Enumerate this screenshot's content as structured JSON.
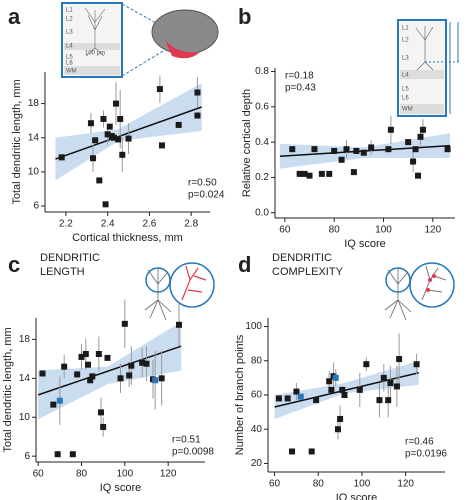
{
  "chart_data": [
    {
      "type": "scatter",
      "label": "a",
      "xlabel": "Cortical thickness, mm",
      "ylabel": "Total dendritic length, mm",
      "stats": [
        "r=0.50",
        "p=0.024"
      ],
      "heading": [],
      "inset_labels": [
        "L1",
        "L2",
        "L3",
        "L4",
        "L5",
        "L6",
        "WM"
      ],
      "inset_scale": "100 μm",
      "xlim": [
        2.1,
        2.89
      ],
      "ylim": [
        5.3,
        21.7
      ],
      "xticks": [
        2.2,
        2.4,
        2.6,
        2.8
      ],
      "yticks": [
        6,
        10,
        14,
        18
      ],
      "band_color": "#c9dcf0",
      "line_color": "#111111",
      "fit": {
        "x": [
          2.15,
          2.85
        ],
        "y": [
          11.5,
          17.6
        ]
      },
      "ci": {
        "x": [
          2.15,
          2.45,
          2.85
        ],
        "lower": [
          9.0,
          13.6,
          14.8
        ],
        "upper": [
          14.0,
          15.0,
          20.4
        ]
      },
      "series": [
        {
          "color": "#1a1a1a",
          "x": [
            2.18,
            2.32,
            2.33,
            2.34,
            2.36,
            2.38,
            2.39,
            2.4,
            2.41,
            2.42,
            2.43,
            2.44,
            2.45,
            2.46,
            2.47,
            2.5,
            2.65,
            2.66,
            2.74,
            2.83,
            2.83
          ],
          "y": [
            11.7,
            15.7,
            11.6,
            13.7,
            9.0,
            16.2,
            6.2,
            14.4,
            15.3,
            14.2,
            14.0,
            18.0,
            13.8,
            16.2,
            12.0,
            13.9,
            19.7,
            13.1,
            15.5,
            19.3,
            16.6
          ],
          "errors": [
            null,
            1.2,
            1.6,
            null,
            null,
            1.0,
            null,
            1.2,
            null,
            null,
            null,
            2.5,
            null,
            3.4,
            2.0,
            1.8,
            1.6,
            null,
            null,
            1.8,
            null
          ]
        }
      ]
    },
    {
      "type": "scatter",
      "label": "b",
      "xlabel": "IQ score",
      "ylabel": "Relative cortical depth",
      "stats": [
        "r=0.18",
        "p=0.43"
      ],
      "heading": [],
      "inset_labels": [
        "L1",
        "L2",
        "L3",
        "L4",
        "L5",
        "L6",
        "WM"
      ],
      "xlim": [
        56,
        129
      ],
      "ylim": [
        -0.03,
        0.82
      ],
      "xticks": [
        60,
        80,
        100,
        120
      ],
      "yticks": [
        {
          "value": 0,
          "label": "0.0"
        },
        0.2,
        0.4,
        0.6,
        0.8
      ],
      "band_color": "#c9dcf0",
      "line_color": "#111111",
      "fit": {
        "x": [
          58,
          127
        ],
        "y": [
          0.32,
          0.38
        ]
      },
      "ci": {
        "x": [
          58,
          92,
          127
        ],
        "lower": [
          0.25,
          0.31,
          0.31
        ],
        "upper": [
          0.39,
          0.37,
          0.45
        ]
      },
      "series": [
        {
          "color": "#1a1a1a",
          "x": [
            63,
            66,
            68,
            70,
            72,
            75,
            78,
            80,
            83,
            85,
            88,
            89,
            92,
            95,
            102,
            103,
            110,
            112,
            113,
            114,
            115,
            116,
            126
          ],
          "y": [
            0.36,
            0.22,
            0.22,
            0.21,
            0.36,
            0.22,
            0.22,
            0.35,
            0.3,
            0.36,
            0.23,
            0.35,
            0.34,
            0.37,
            0.36,
            0.47,
            0.4,
            0.29,
            0.36,
            0.21,
            0.43,
            0.47,
            0.36
          ],
          "errors": [
            null,
            null,
            null,
            null,
            null,
            null,
            null,
            null,
            null,
            0.05,
            null,
            null,
            null,
            0.04,
            null,
            0.08,
            null,
            0.06,
            null,
            null,
            0.05,
            0.06,
            null
          ]
        }
      ]
    },
    {
      "type": "scatter",
      "label": "c",
      "xlabel": "IQ score",
      "ylabel": "Total dendritic length, mm",
      "stats": [
        "r=0.51",
        "p=0.0098"
      ],
      "heading": [
        "DENDRITIC",
        "LENGTH"
      ],
      "xlim": [
        59,
        137
      ],
      "ylim": [
        5.4,
        20.2
      ],
      "xticks": [
        60,
        80,
        100,
        120
      ],
      "yticks": [
        6,
        10,
        14,
        18
      ],
      "band_color": "#c9dcf0",
      "line_color": "#111111",
      "fit": {
        "x": [
          60,
          126
        ],
        "y": [
          12.3,
          17.3
        ]
      },
      "ci": {
        "x": [
          60,
          92,
          126
        ],
        "lower": [
          9.8,
          13.4,
          14.8
        ],
        "upper": [
          14.8,
          15.2,
          19.8
        ]
      },
      "series": [
        {
          "color": "#1a1a1a",
          "x": [
            62,
            67,
            69,
            72,
            76,
            78,
            80,
            82,
            83,
            84,
            85,
            88,
            89,
            90,
            92,
            98,
            100,
            102,
            103,
            108,
            110,
            113,
            117,
            125
          ],
          "y": [
            14.5,
            11.3,
            6.2,
            15.2,
            6.2,
            14.4,
            16.2,
            16.5,
            15.4,
            13.8,
            14.2,
            16.5,
            10.5,
            9.0,
            16.1,
            14.0,
            19.6,
            14.3,
            15.3,
            15.6,
            15.5,
            13.9,
            14.0,
            19.5
          ],
          "errors": [
            null,
            null,
            null,
            1.2,
            null,
            null,
            1.3,
            1.6,
            null,
            null,
            null,
            1.8,
            1.5,
            1.0,
            null,
            1.5,
            2.5,
            1.2,
            2.0,
            1.5,
            1.8,
            2.0,
            2.8,
            2.2
          ]
        },
        {
          "color": "#2a78b8",
          "x": [
            70,
            114
          ],
          "y": [
            11.7,
            13.8
          ],
          "errors": [
            2.5,
            3.0
          ]
        }
      ]
    },
    {
      "type": "scatter",
      "label": "d",
      "xlabel": "IQ score",
      "ylabel": "Number of branch points",
      "stats": [
        "r=0.46",
        "p=0.0196"
      ],
      "heading": [
        "DENDRITIC",
        "COMPLEXITY"
      ],
      "xlim": [
        57,
        138
      ],
      "ylim": [
        15,
        105
      ],
      "xticks": [
        60,
        80,
        100,
        120
      ],
      "yticks": [
        20,
        40,
        60,
        80,
        100
      ],
      "band_color": "#c9dcf0",
      "line_color": "#111111",
      "fit": {
        "x": [
          60,
          126
        ],
        "y": [
          53,
          73
        ]
      },
      "ci": {
        "x": [
          60,
          92,
          126
        ],
        "lower": [
          46,
          61,
          66
        ],
        "upper": [
          60,
          67,
          80
        ]
      },
      "series": [
        {
          "color": "#1a1a1a",
          "x": [
            62,
            66,
            68,
            70,
            77,
            79,
            85,
            86,
            87,
            89,
            90,
            91,
            92,
            99,
            102,
            108,
            110,
            112,
            113,
            116,
            117,
            125
          ],
          "y": [
            58,
            58,
            27,
            62,
            27,
            57,
            68,
            63,
            71,
            40,
            46,
            63,
            60,
            63,
            78,
            57,
            70,
            57,
            67,
            65,
            81,
            78
          ],
          "errors": [
            null,
            null,
            null,
            5,
            null,
            null,
            6,
            null,
            8,
            6,
            8,
            null,
            null,
            10,
            4,
            10,
            8,
            10,
            10,
            12,
            15,
            6
          ]
        },
        {
          "color": "#2a78b8",
          "x": [
            72,
            88
          ],
          "y": [
            59,
            70
          ],
          "errors": [
            null,
            5
          ]
        }
      ]
    }
  ]
}
